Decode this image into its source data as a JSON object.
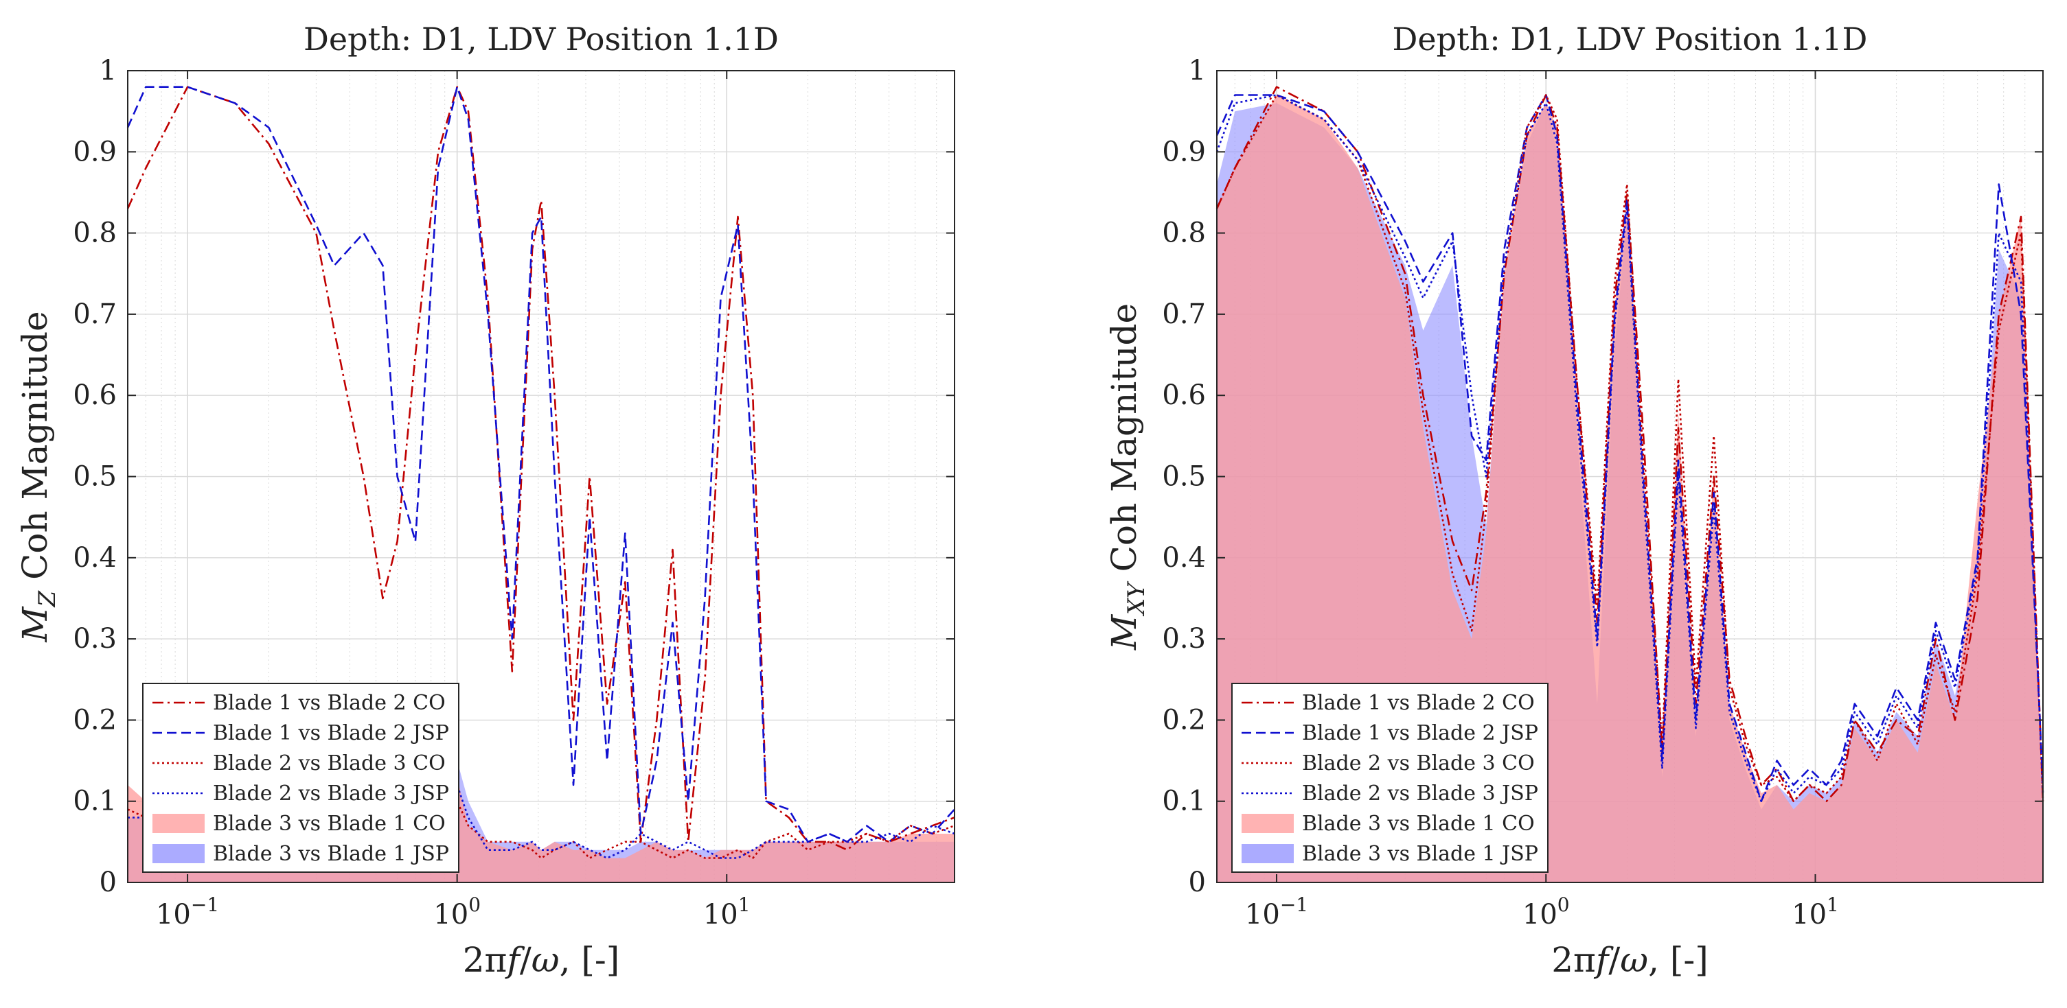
{
  "colors": {
    "co": "#c00000",
    "jsp": "#1010d0",
    "co_fill": "#ff9a9a",
    "jsp_fill": "#8f8fff",
    "overlap": "#c47ab0",
    "grid": "#d9d9d9",
    "axes": "#262626"
  },
  "chart_data": [
    {
      "type": "line",
      "title": "Depth: D1, LDV Position 1.1D",
      "xlabel": "2πf/ω, [-]",
      "ylabel": "M_Z Coh Magnitude",
      "ylabel_parts": {
        "base": "M",
        "sub": "Z",
        "rest": " Coh Magnitude"
      },
      "xlabel_parts": {
        "prefix": "2",
        "pi": "π",
        "f": "f",
        "slash": "/",
        "omega": "ω",
        "suffix": ", [-]"
      },
      "xscale": "log",
      "xlim": [
        0.06,
        70
      ],
      "ylim": [
        0,
        1
      ],
      "xticks": [
        {
          "base": "10",
          "exp": "−1"
        },
        {
          "base": "10",
          "exp": "0"
        },
        {
          "base": "10",
          "exp": "1"
        }
      ],
      "yticks": [
        "0",
        "0.1",
        "0.2",
        "0.3",
        "0.4",
        "0.5",
        "0.6",
        "0.7",
        "0.8",
        "0.9",
        "1"
      ],
      "grid": true,
      "legend_position": "bottom-left",
      "x": [
        0.06,
        0.07,
        0.1,
        0.15,
        0.2,
        0.3,
        0.35,
        0.45,
        0.53,
        0.6,
        0.7,
        0.85,
        1.0,
        1.1,
        1.3,
        1.6,
        1.9,
        2.05,
        2.3,
        2.7,
        3.1,
        3.6,
        4.2,
        4.8,
        5.5,
        6.3,
        7.2,
        8.3,
        9.5,
        11.0,
        12.5,
        14.0,
        17.0,
        20.0,
        24.0,
        28.0,
        33.0,
        40.0,
        48.0,
        58.0,
        70.0
      ],
      "series": [
        {
          "name": "Blade 1 vs Blade 2 CO",
          "style": "dashdot",
          "color_key": "co",
          "values": [
            0.83,
            0.88,
            0.98,
            0.96,
            0.91,
            0.8,
            0.68,
            0.5,
            0.35,
            0.42,
            0.65,
            0.9,
            0.98,
            0.95,
            0.72,
            0.26,
            0.78,
            0.84,
            0.6,
            0.2,
            0.5,
            0.22,
            0.37,
            0.05,
            0.2,
            0.41,
            0.05,
            0.25,
            0.6,
            0.82,
            0.6,
            0.1,
            0.08,
            0.05,
            0.05,
            0.04,
            0.06,
            0.05,
            0.06,
            0.07,
            0.08
          ]
        },
        {
          "name": "Blade 1 vs Blade 2 JSP",
          "style": "dashed",
          "color_key": "jsp",
          "values": [
            0.93,
            0.98,
            0.98,
            0.96,
            0.93,
            0.81,
            0.76,
            0.8,
            0.76,
            0.5,
            0.42,
            0.88,
            0.98,
            0.94,
            0.7,
            0.3,
            0.8,
            0.82,
            0.5,
            0.12,
            0.45,
            0.15,
            0.43,
            0.06,
            0.15,
            0.32,
            0.1,
            0.35,
            0.72,
            0.81,
            0.5,
            0.1,
            0.09,
            0.05,
            0.06,
            0.05,
            0.07,
            0.05,
            0.07,
            0.06,
            0.09
          ]
        },
        {
          "name": "Blade 2 vs Blade 3 CO",
          "style": "dotted",
          "color_key": "co",
          "values": [
            0.09,
            0.08,
            0.07,
            0.06,
            0.06,
            0.05,
            0.05,
            0.06,
            0.04,
            0.05,
            0.12,
            0.13,
            0.1,
            0.07,
            0.05,
            0.05,
            0.04,
            0.03,
            0.04,
            0.05,
            0.03,
            0.04,
            0.05,
            0.05,
            0.04,
            0.03,
            0.04,
            0.03,
            0.03,
            0.04,
            0.03,
            0.05,
            0.06,
            0.04,
            0.05,
            0.05,
            0.06,
            0.05,
            0.07,
            0.06,
            0.07
          ]
        },
        {
          "name": "Blade 2 vs Blade 3 JSP",
          "style": "dotted",
          "color_key": "jsp",
          "values": [
            0.08,
            0.08,
            0.07,
            0.07,
            0.06,
            0.05,
            0.06,
            0.07,
            0.05,
            0.08,
            0.14,
            0.16,
            0.12,
            0.08,
            0.04,
            0.04,
            0.05,
            0.04,
            0.04,
            0.05,
            0.04,
            0.03,
            0.04,
            0.06,
            0.05,
            0.04,
            0.05,
            0.04,
            0.03,
            0.03,
            0.04,
            0.05,
            0.05,
            0.05,
            0.06,
            0.05,
            0.05,
            0.06,
            0.05,
            0.07,
            0.06
          ]
        },
        {
          "name": "Blade 3 vs Blade 1 CO",
          "style": "area",
          "color_key": "co_fill",
          "values": [
            0.12,
            0.1,
            0.08,
            0.08,
            0.07,
            0.06,
            0.05,
            0.05,
            0.04,
            0.06,
            0.1,
            0.12,
            0.13,
            0.07,
            0.05,
            0.04,
            0.05,
            0.04,
            0.05,
            0.04,
            0.04,
            0.03,
            0.03,
            0.04,
            0.05,
            0.04,
            0.04,
            0.03,
            0.04,
            0.04,
            0.04,
            0.05,
            0.05,
            0.05,
            0.05,
            0.05,
            0.05,
            0.05,
            0.06,
            0.06,
            0.06
          ]
        },
        {
          "name": "Blade 3 vs Blade 1 JSP",
          "style": "area",
          "color_key": "jsp_fill",
          "values": [
            0.08,
            0.08,
            0.08,
            0.09,
            0.08,
            0.07,
            0.08,
            0.09,
            0.08,
            0.1,
            0.16,
            0.17,
            0.15,
            0.1,
            0.05,
            0.05,
            0.05,
            0.04,
            0.05,
            0.05,
            0.04,
            0.04,
            0.04,
            0.05,
            0.05,
            0.04,
            0.04,
            0.04,
            0.04,
            0.04,
            0.04,
            0.05,
            0.05,
            0.05,
            0.05,
            0.05,
            0.05,
            0.05,
            0.05,
            0.05,
            0.05
          ]
        }
      ],
      "legend": [
        "Blade 1 vs Blade 2 CO",
        "Blade 1 vs Blade 2 JSP",
        "Blade 2 vs Blade 3 CO",
        "Blade 2 vs Blade 3 JSP",
        "Blade 3 vs Blade 1 CO",
        "Blade 3 vs Blade 1 JSP"
      ]
    },
    {
      "type": "line",
      "title": "Depth: D1, LDV Position 1.1D",
      "xlabel": "2πf/ω, [-]",
      "ylabel": "M_XY Coh Magnitude",
      "ylabel_parts": {
        "base": "M",
        "sub": "XY",
        "rest": " Coh Magnitude"
      },
      "xlabel_parts": {
        "prefix": "2",
        "pi": "π",
        "f": "f",
        "slash": "/",
        "omega": "ω",
        "suffix": ", [-]"
      },
      "xscale": "log",
      "xlim": [
        0.06,
        70
      ],
      "ylim": [
        0,
        1
      ],
      "xticks": [
        {
          "base": "10",
          "exp": "−1"
        },
        {
          "base": "10",
          "exp": "0"
        },
        {
          "base": "10",
          "exp": "1"
        }
      ],
      "yticks": [
        "0",
        "0.1",
        "0.2",
        "0.3",
        "0.4",
        "0.5",
        "0.6",
        "0.7",
        "0.8",
        "0.9",
        "1"
      ],
      "grid": true,
      "legend_position": "bottom-left",
      "x": [
        0.06,
        0.07,
        0.1,
        0.15,
        0.2,
        0.3,
        0.35,
        0.45,
        0.53,
        0.6,
        0.7,
        0.85,
        1.0,
        1.1,
        1.3,
        1.55,
        1.8,
        2.0,
        2.3,
        2.7,
        3.1,
        3.6,
        4.2,
        4.8,
        5.5,
        6.3,
        7.2,
        8.3,
        9.5,
        11.0,
        12.5,
        14.0,
        17.0,
        20.0,
        24.0,
        28.0,
        33.0,
        40.0,
        48.0,
        58.0,
        70.0
      ],
      "series": [
        {
          "name": "Blade 1 vs Blade 2 CO",
          "style": "dashdot",
          "color_key": "co",
          "values": [
            0.83,
            0.88,
            0.98,
            0.95,
            0.9,
            0.75,
            0.6,
            0.42,
            0.36,
            0.48,
            0.75,
            0.92,
            0.97,
            0.93,
            0.62,
            0.32,
            0.72,
            0.85,
            0.55,
            0.16,
            0.56,
            0.22,
            0.5,
            0.25,
            0.18,
            0.12,
            0.14,
            0.1,
            0.12,
            0.1,
            0.12,
            0.2,
            0.16,
            0.2,
            0.18,
            0.3,
            0.2,
            0.35,
            0.7,
            0.82,
            0.1
          ]
        },
        {
          "name": "Blade 1 vs Blade 2 JSP",
          "style": "dashed",
          "color_key": "jsp",
          "values": [
            0.92,
            0.97,
            0.97,
            0.95,
            0.9,
            0.79,
            0.74,
            0.8,
            0.55,
            0.52,
            0.78,
            0.93,
            0.97,
            0.92,
            0.6,
            0.3,
            0.7,
            0.84,
            0.5,
            0.15,
            0.52,
            0.2,
            0.48,
            0.22,
            0.16,
            0.1,
            0.15,
            0.12,
            0.14,
            0.12,
            0.15,
            0.22,
            0.18,
            0.24,
            0.2,
            0.32,
            0.25,
            0.4,
            0.86,
            0.7,
            0.12
          ]
        },
        {
          "name": "Blade 2 vs Blade 3 CO",
          "style": "dotted",
          "color_key": "co",
          "values": [
            0.83,
            0.88,
            0.97,
            0.94,
            0.89,
            0.73,
            0.58,
            0.38,
            0.31,
            0.46,
            0.76,
            0.93,
            0.97,
            0.94,
            0.62,
            0.34,
            0.74,
            0.86,
            0.52,
            0.17,
            0.62,
            0.24,
            0.55,
            0.24,
            0.17,
            0.12,
            0.13,
            0.1,
            0.12,
            0.11,
            0.13,
            0.2,
            0.15,
            0.22,
            0.17,
            0.28,
            0.21,
            0.38,
            0.68,
            0.8,
            0.1
          ]
        },
        {
          "name": "Blade 2 vs Blade 3 JSP",
          "style": "dotted",
          "color_key": "jsp",
          "values": [
            0.9,
            0.96,
            0.97,
            0.94,
            0.89,
            0.77,
            0.72,
            0.79,
            0.6,
            0.5,
            0.76,
            0.92,
            0.96,
            0.91,
            0.58,
            0.29,
            0.69,
            0.83,
            0.48,
            0.14,
            0.5,
            0.19,
            0.46,
            0.21,
            0.15,
            0.1,
            0.14,
            0.11,
            0.13,
            0.12,
            0.14,
            0.21,
            0.17,
            0.23,
            0.19,
            0.31,
            0.24,
            0.39,
            0.8,
            0.74,
            0.11
          ]
        },
        {
          "name": "Blade 3 vs Blade 1 CO",
          "style": "area",
          "color_key": "co_fill",
          "values": [
            0.83,
            0.88,
            0.97,
            0.94,
            0.88,
            0.72,
            0.56,
            0.36,
            0.3,
            0.43,
            0.75,
            0.92,
            0.96,
            0.93,
            0.6,
            0.3,
            0.71,
            0.84,
            0.5,
            0.15,
            0.58,
            0.2,
            0.5,
            0.22,
            0.16,
            0.11,
            0.12,
            0.09,
            0.11,
            0.1,
            0.12,
            0.19,
            0.15,
            0.2,
            0.16,
            0.27,
            0.2,
            0.47,
            0.7,
            0.82,
            0.09
          ]
        },
        {
          "name": "Blade 3 vs Blade 1 JSP",
          "style": "area",
          "color_key": "jsp_fill",
          "values": [
            0.86,
            0.95,
            0.96,
            0.93,
            0.88,
            0.76,
            0.68,
            0.76,
            0.55,
            0.44,
            0.74,
            0.91,
            0.96,
            0.9,
            0.56,
            0.22,
            0.66,
            0.82,
            0.46,
            0.13,
            0.47,
            0.18,
            0.44,
            0.2,
            0.14,
            0.09,
            0.12,
            0.1,
            0.12,
            0.11,
            0.13,
            0.2,
            0.16,
            0.21,
            0.18,
            0.3,
            0.23,
            0.37,
            0.78,
            0.72,
            0.1
          ]
        }
      ],
      "legend": [
        "Blade 1 vs Blade 2 CO",
        "Blade 1 vs Blade 2 JSP",
        "Blade 2 vs Blade 3 CO",
        "Blade 2 vs Blade 3 JSP",
        "Blade 3 vs Blade 1 CO",
        "Blade 3 vs Blade 1 JSP"
      ]
    }
  ]
}
